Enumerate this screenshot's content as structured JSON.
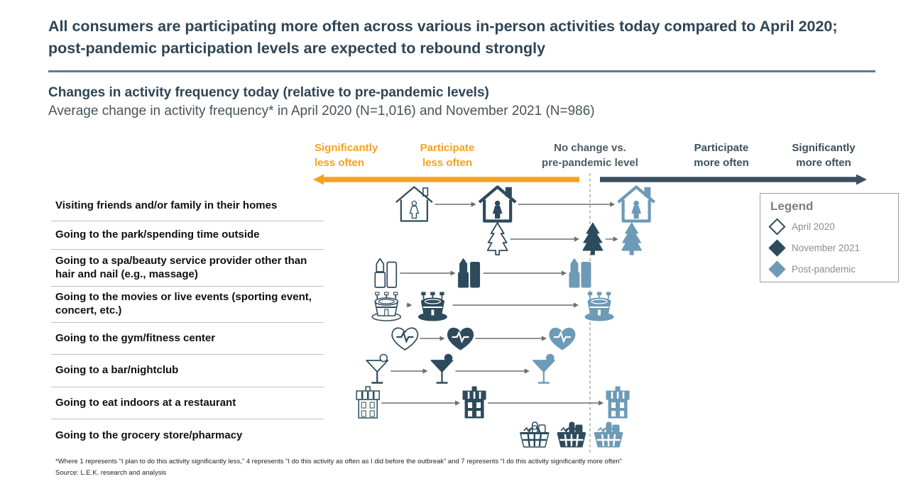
{
  "slide": {
    "title": "All consumers are participating more often across various in-person activities today compared to April 2020; post-pandemic participation levels are expected to rebound strongly",
    "subtitle_bold": "Changes in activity frequency today (relative to pre-pandemic levels)",
    "subtitle_regular": "Average change in activity frequency* in April 2020 (N=1,016) and November 2021 (N=986)",
    "footnote": "*Where 1 represents “I plan to do this activity significantly less,” 4 represents “I do this activity as often as I did before the outbreak” and 7 represents “I do this activity significantly more often”",
    "source": "Source: L.E.K. research and analysis"
  },
  "axis": {
    "labels": [
      {
        "line1": "Significantly",
        "line2": "less often",
        "tone": "orange"
      },
      {
        "line1": "Participate",
        "line2": "less often",
        "tone": "orange"
      },
      {
        "line1": "No change vs.",
        "line2": "pre-pandemic level",
        "tone": "gray"
      },
      {
        "line1": "Participate",
        "line2": "more often",
        "tone": "dark"
      },
      {
        "line1": "Significantly",
        "line2": "more often",
        "tone": "dark"
      }
    ]
  },
  "legend": {
    "title": "Legend",
    "items": [
      {
        "label": "April 2020",
        "variant": "outline"
      },
      {
        "label": "November 2021",
        "variant": "dark"
      },
      {
        "label": "Post-pandemic",
        "variant": "blue"
      }
    ]
  },
  "colors": {
    "dark_navy": "#2d4b5c",
    "steel_blue": "#6d9ab6",
    "orange": "#f8a120",
    "slate_arrow": "#3a5060",
    "connector_gray": "#6e6e6e",
    "dashed_line": "#9aa0a3",
    "divider": "#5e7e95"
  },
  "chart_data": {
    "type": "scatter",
    "title": "Changes in activity frequency today (relative to pre-pandemic levels)",
    "xlabel": "Average change in activity frequency (1 = significantly less often, 4 = no change vs. pre-pandemic level, 7 = significantly more often)",
    "x_range": [
      1,
      7
    ],
    "no_change_value": 4,
    "legend_position": "right",
    "series_names": [
      "April 2020",
      "November 2021",
      "Post-pandemic"
    ],
    "rows": [
      {
        "activity": "Visiting friends and/or family in their homes",
        "icon": "house",
        "values": [
          2.1,
          3.0,
          4.5
        ]
      },
      {
        "activity": "Going to the park/spending time outside",
        "icon": "tree",
        "values": [
          3.0,
          4.03,
          4.45
        ]
      },
      {
        "activity": "Going to a spa/beauty service provider other than hair and nail (e.g., massage)",
        "icon": "lipstick",
        "values": [
          1.8,
          2.7,
          3.9
        ]
      },
      {
        "activity": "Going to the movies or live events (sporting event, concert, etc.)",
        "icon": "stadium",
        "values": [
          1.8,
          2.3,
          4.1
        ]
      },
      {
        "activity": "Going to the gym/fitness center",
        "icon": "heart",
        "values": [
          2.0,
          2.6,
          3.7
        ]
      },
      {
        "activity": "Going to a bar/nightclub",
        "icon": "cocktail",
        "values": [
          1.7,
          2.4,
          3.5
        ]
      },
      {
        "activity": "Going to eat indoors at a restaurant",
        "icon": "store",
        "values": [
          1.6,
          2.75,
          4.3
        ]
      },
      {
        "activity": "Going to the grocery store/pharmacy",
        "icon": "basket",
        "values": [
          3.4,
          3.8,
          4.2
        ]
      }
    ]
  }
}
